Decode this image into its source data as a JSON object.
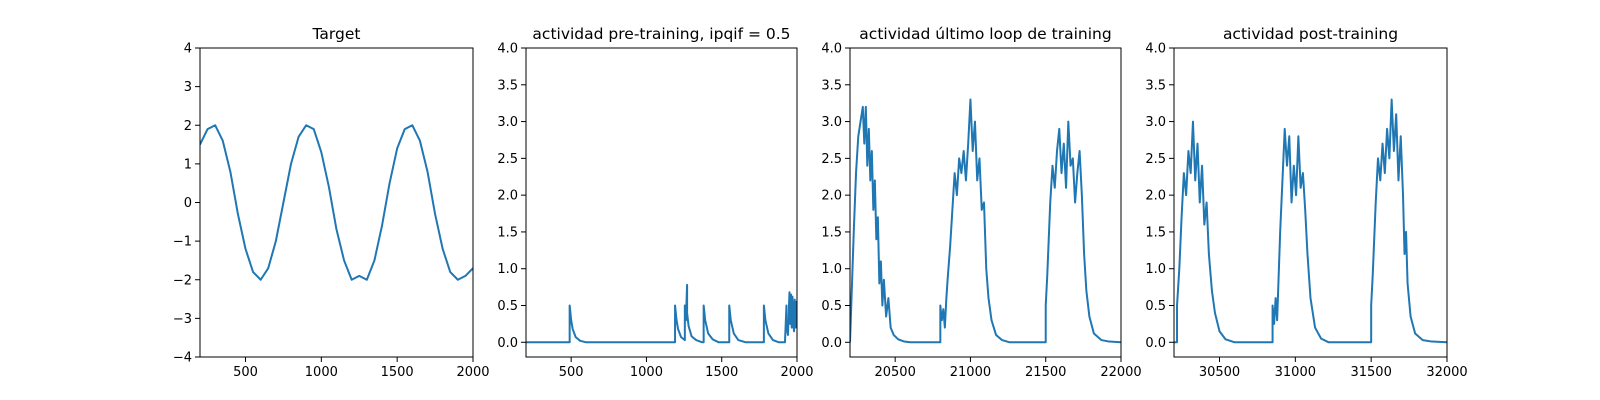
{
  "figure": {
    "background": "#ffffff",
    "line_color": "#1f77b4"
  },
  "chart_data": [
    {
      "type": "line",
      "title": "Target",
      "xlabel": "",
      "ylabel": "",
      "xlim": [
        200,
        2000
      ],
      "ylim": [
        -4,
        4
      ],
      "xticks": [
        500,
        1000,
        1500,
        2000
      ],
      "yticks": [
        -4,
        -3,
        -2,
        -1,
        0,
        1,
        2,
        3,
        4
      ],
      "xtick_labels": [
        "500",
        "1000",
        "1500",
        "2000"
      ],
      "ytick_labels": [
        "−4",
        "−3",
        "−2",
        "−1",
        "0",
        "1",
        "2",
        "3",
        "4"
      ],
      "grid": false,
      "series": [
        {
          "x": [
            200,
            250,
            300,
            350,
            400,
            450,
            500,
            550,
            600,
            650,
            700,
            750,
            800,
            850,
            900,
            950,
            1000,
            1050,
            1100,
            1150,
            1200,
            1250,
            1300,
            1350,
            1400,
            1450,
            1500,
            1550,
            1600,
            1650,
            1700,
            1750,
            1800,
            1850,
            1900,
            1950,
            2000
          ],
          "values": [
            1.5,
            1.9,
            2.0,
            1.6,
            0.8,
            -0.3,
            -1.2,
            -1.8,
            -2.0,
            -1.7,
            -1.0,
            0.0,
            1.0,
            1.7,
            2.0,
            1.9,
            1.3,
            0.4,
            -0.7,
            -1.5,
            -2.0,
            -1.9,
            -2.0,
            -1.5,
            -0.6,
            0.5,
            1.4,
            1.9,
            2.0,
            1.6,
            0.8,
            -0.3,
            -1.2,
            -1.8,
            -2.0,
            -1.9,
            -1.7
          ]
        }
      ]
    },
    {
      "type": "line",
      "title": "actividad pre-training, ipqif = 0.5",
      "xlabel": "",
      "ylabel": "",
      "xlim": [
        200,
        2000
      ],
      "ylim": [
        -0.2,
        4.0
      ],
      "xticks": [
        500,
        1000,
        1500,
        2000
      ],
      "yticks": [
        0.0,
        0.5,
        1.0,
        1.5,
        2.0,
        2.5,
        3.0,
        3.5,
        4.0
      ],
      "xtick_labels": [
        "500",
        "1000",
        "1500",
        "2000"
      ],
      "ytick_labels": [
        "0.0",
        "0.5",
        "1.0",
        "1.5",
        "2.0",
        "2.5",
        "3.0",
        "3.5",
        "4.0"
      ],
      "grid": false,
      "series": [
        {
          "x": [
            200,
            490,
            490,
            500,
            510,
            530,
            560,
            600,
            1190,
            1190,
            1200,
            1210,
            1230,
            1255,
            1255,
            1262,
            1262,
            1270,
            1270,
            1280,
            1300,
            1330,
            1370,
            1380,
            1380,
            1390,
            1410,
            1440,
            1480,
            1550,
            1550,
            1560,
            1580,
            1610,
            1660,
            1780,
            1780,
            1790,
            1810,
            1840,
            1880,
            1920,
            1930,
            1930,
            1940,
            1950,
            1955,
            1960,
            1965,
            1970,
            1975,
            1980,
            1985,
            1990,
            1995,
            2000
          ],
          "values": [
            0.0,
            0.0,
            0.5,
            0.3,
            0.18,
            0.07,
            0.02,
            0.0,
            0.0,
            0.5,
            0.3,
            0.18,
            0.07,
            0.03,
            0.5,
            0.3,
            0.3,
            0.78,
            0.4,
            0.22,
            0.08,
            0.03,
            0.0,
            0.0,
            0.5,
            0.3,
            0.12,
            0.04,
            0.0,
            0.0,
            0.5,
            0.3,
            0.12,
            0.03,
            0.0,
            0.0,
            0.5,
            0.3,
            0.12,
            0.03,
            0.0,
            0.0,
            0.5,
            0.22,
            0.1,
            0.68,
            0.25,
            0.65,
            0.2,
            0.62,
            0.3,
            0.15,
            0.58,
            0.2,
            0.55,
            0.3
          ]
        }
      ]
    },
    {
      "type": "line",
      "title": "actividad último loop de training",
      "xlabel": "",
      "ylabel": "",
      "xlim": [
        20200,
        22000
      ],
      "ylim": [
        -0.2,
        4.0
      ],
      "xticks": [
        20500,
        21000,
        21500,
        22000
      ],
      "yticks": [
        0.0,
        0.5,
        1.0,
        1.5,
        2.0,
        2.5,
        3.0,
        3.5,
        4.0
      ],
      "xtick_labels": [
        "20500",
        "21000",
        "21500",
        "22000"
      ],
      "ytick_labels": [
        "0.0",
        "0.5",
        "1.0",
        "1.5",
        "2.0",
        "2.5",
        "3.0",
        "3.5",
        "4.0"
      ],
      "grid": false,
      "series": [
        {
          "x": [
            20200,
            20210,
            20225,
            20240,
            20255,
            20270,
            20285,
            20295,
            20305,
            20315,
            20325,
            20335,
            20345,
            20355,
            20365,
            20375,
            20385,
            20395,
            20405,
            20415,
            20425,
            20440,
            20455,
            20470,
            20490,
            20520,
            20560,
            20600,
            20800,
            20800,
            20810,
            20820,
            20830,
            20840,
            20850,
            20865,
            20880,
            20895,
            20910,
            20925,
            20940,
            20955,
            20970,
            20985,
            21000,
            21015,
            21030,
            21045,
            21060,
            21075,
            21090,
            21105,
            21120,
            21140,
            21170,
            21210,
            21260,
            21300,
            21500,
            21500,
            21510,
            21520,
            21530,
            21545,
            21560,
            21575,
            21590,
            21605,
            21620,
            21635,
            21650,
            21665,
            21680,
            21695,
            21710,
            21725,
            21740,
            21755,
            21770,
            21790,
            21820,
            21870,
            21920,
            22000
          ],
          "values": [
            0.0,
            0.6,
            1.5,
            2.3,
            2.8,
            3.0,
            3.2,
            2.7,
            3.2,
            2.4,
            2.9,
            2.2,
            2.6,
            1.8,
            2.2,
            1.4,
            1.7,
            0.8,
            1.1,
            0.5,
            0.85,
            0.35,
            0.6,
            0.2,
            0.1,
            0.04,
            0.01,
            0.0,
            0.0,
            0.5,
            0.3,
            0.45,
            0.2,
            0.6,
            0.9,
            1.3,
            1.8,
            2.3,
            2.0,
            2.5,
            2.3,
            2.6,
            2.2,
            2.7,
            3.3,
            2.6,
            3.0,
            2.2,
            2.5,
            1.8,
            1.9,
            1.0,
            0.6,
            0.3,
            0.1,
            0.03,
            0.0,
            0.0,
            0.0,
            0.5,
            0.9,
            1.4,
            1.9,
            2.4,
            2.1,
            2.6,
            2.9,
            2.3,
            2.7,
            2.1,
            3.0,
            2.4,
            2.5,
            1.9,
            2.3,
            2.6,
            2.0,
            1.2,
            0.7,
            0.35,
            0.12,
            0.03,
            0.01,
            0.0
          ]
        }
      ]
    },
    {
      "type": "line",
      "title": "actividad post-training",
      "xlabel": "",
      "ylabel": "",
      "xlim": [
        30200,
        32000
      ],
      "ylim": [
        -0.2,
        4.0
      ],
      "xticks": [
        30500,
        31000,
        31500,
        32000
      ],
      "yticks": [
        0.0,
        0.5,
        1.0,
        1.5,
        2.0,
        2.5,
        3.0,
        3.5,
        4.0
      ],
      "xtick_labels": [
        "30500",
        "31000",
        "31500",
        "32000"
      ],
      "ytick_labels": [
        "0.0",
        "0.5",
        "1.0",
        "1.5",
        "2.0",
        "2.5",
        "3.0",
        "3.5",
        "4.0"
      ],
      "grid": false,
      "series": [
        {
          "x": [
            30200,
            30220,
            30220,
            30235,
            30250,
            30265,
            30280,
            30295,
            30310,
            30325,
            30340,
            30355,
            30370,
            30385,
            30400,
            30415,
            30430,
            30450,
            30470,
            30500,
            30540,
            30600,
            30850,
            30850,
            30860,
            30870,
            30880,
            30890,
            30900,
            30915,
            30930,
            30945,
            30960,
            30975,
            30990,
            31005,
            31020,
            31035,
            31050,
            31065,
            31080,
            31100,
            31130,
            31170,
            31220,
            31500,
            31500,
            31510,
            31520,
            31530,
            31545,
            31560,
            31575,
            31590,
            31605,
            31620,
            31635,
            31650,
            31665,
            31680,
            31695,
            31710,
            31720,
            31730,
            31740,
            31760,
            31790,
            31840,
            31900,
            32000
          ],
          "values": [
            0.0,
            0.0,
            0.5,
            1.0,
            1.7,
            2.3,
            2.0,
            2.6,
            2.3,
            3.0,
            2.2,
            2.7,
            1.9,
            2.4,
            1.6,
            1.9,
            1.2,
            0.7,
            0.4,
            0.15,
            0.04,
            0.0,
            0.0,
            0.5,
            0.25,
            0.6,
            0.3,
            0.9,
            1.5,
            2.2,
            2.9,
            2.4,
            2.8,
            1.9,
            2.4,
            2.0,
            2.8,
            2.1,
            2.3,
            1.8,
            1.2,
            0.6,
            0.2,
            0.05,
            0.0,
            0.0,
            0.5,
            0.9,
            1.4,
            1.9,
            2.5,
            2.2,
            2.7,
            2.3,
            2.9,
            2.5,
            3.3,
            2.6,
            3.1,
            2.2,
            2.8,
            2.0,
            1.2,
            1.5,
            0.8,
            0.35,
            0.12,
            0.03,
            0.01,
            0.0
          ]
        }
      ]
    }
  ]
}
